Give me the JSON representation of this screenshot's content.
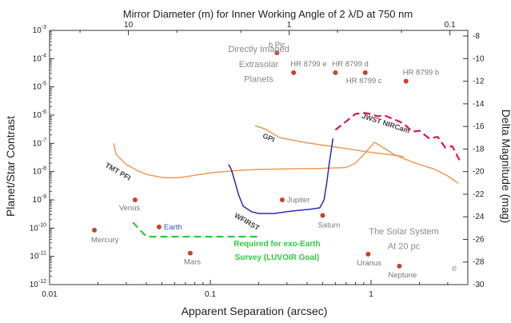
{
  "chart_data": {
    "type": "scatter",
    "title": "Mirror Diameter (m) for Inner Working Angle of 2 λ/D at 750 nm",
    "xlabel": "Apparent Separation (arcsec)",
    "ylabel": "Planet/Star Contrast",
    "y2label": "Delta Magnitude (mag)",
    "xscale": "log",
    "yscale": "log",
    "xlim": [
      0.01,
      4
    ],
    "ylim": [
      1e-12,
      0.001
    ],
    "x_ticks": [
      {
        "value": 0.01,
        "label": "0.01"
      },
      {
        "value": 0.1,
        "label": "0.1"
      },
      {
        "value": 1,
        "label": "1"
      }
    ],
    "y_ticks": [
      {
        "exp": -3,
        "base": "10",
        "power": "-3"
      },
      {
        "exp": -4,
        "base": "10",
        "power": "-4"
      },
      {
        "exp": -5,
        "base": "10",
        "power": "-5"
      },
      {
        "exp": -6,
        "base": "10",
        "power": "-6"
      },
      {
        "exp": -7,
        "base": "10",
        "power": "-7"
      },
      {
        "exp": -8,
        "base": "10",
        "power": "-8"
      },
      {
        "exp": -9,
        "base": "10",
        "power": "-9"
      },
      {
        "exp": -10,
        "base": "10",
        "power": "-10"
      },
      {
        "exp": -11,
        "base": "10",
        "power": "-11"
      },
      {
        "exp": -12,
        "base": "10",
        "power": "-12"
      }
    ],
    "top_ticks": [
      {
        "value": 10,
        "label": "10"
      },
      {
        "value": 1,
        "label": "1"
      },
      {
        "value": 0.1,
        "label": "0.1"
      }
    ],
    "right_ticks": [
      {
        "value": -8,
        "label": "-8"
      },
      {
        "value": -10,
        "label": "-10"
      },
      {
        "value": -12,
        "label": "-12"
      },
      {
        "value": -14,
        "label": "-14"
      },
      {
        "value": -16,
        "label": "-16"
      },
      {
        "value": -18,
        "label": "-18"
      },
      {
        "value": -20,
        "label": "-20"
      },
      {
        "value": -22,
        "label": "-22"
      },
      {
        "value": -24,
        "label": "-24"
      },
      {
        "value": -26,
        "label": "-26"
      },
      {
        "value": -28,
        "label": "-28"
      },
      {
        "value": -30,
        "label": "-30"
      }
    ],
    "planets": [
      {
        "name": "b Pic",
        "x": 0.26,
        "y": 0.00016,
        "label_color": "#777777"
      },
      {
        "name": "HR 8799 e",
        "x": 0.33,
        "y": 3.2e-05,
        "label_color": "#777777"
      },
      {
        "name": "HR 8799 d",
        "x": 0.6,
        "y": 3.2e-05,
        "label_color": "#777777"
      },
      {
        "name": "HR 8799 c",
        "x": 0.92,
        "y": 3.2e-05,
        "label_color": "#777777"
      },
      {
        "name": "HR 8799 b",
        "x": 1.65,
        "y": 1.6e-05,
        "label_color": "#777777"
      },
      {
        "name": "Venus",
        "x": 0.034,
        "y": 1e-09,
        "label_color": "#777777"
      },
      {
        "name": "Earth",
        "x": 0.048,
        "y": 1.1e-10,
        "label_color": "#2a55c8"
      },
      {
        "name": "Mercury",
        "x": 0.019,
        "y": 8.5e-11,
        "label_color": "#777777"
      },
      {
        "name": "Mars",
        "x": 0.075,
        "y": 1.3e-11,
        "label_color": "#777777"
      },
      {
        "name": "Jupiter",
        "x": 0.28,
        "y": 1e-09,
        "label_color": "#777777"
      },
      {
        "name": "Saturn",
        "x": 0.5,
        "y": 2.8e-10,
        "label_color": "#777777"
      },
      {
        "name": "Uranus",
        "x": 0.96,
        "y": 1.2e-11,
        "label_color": "#777777"
      },
      {
        "name": "Neptune",
        "x": 1.5,
        "y": 4.5e-12,
        "label_color": "#777777"
      }
    ],
    "series": [
      {
        "name": "TMT PFI",
        "color": "#ef9a5a",
        "style": "solid",
        "points": [
          [
            0.025,
            1e-07
          ],
          [
            0.026,
            4e-08
          ],
          [
            0.03,
            1.8e-08
          ],
          [
            0.035,
            1.1e-08
          ],
          [
            0.04,
            8e-09
          ],
          [
            0.05,
            6.2e-09
          ],
          [
            0.06,
            6e-09
          ],
          [
            0.07,
            6.5e-09
          ],
          [
            0.08,
            7.5e-09
          ],
          [
            0.1,
            9e-09
          ],
          [
            0.12,
            1e-08
          ],
          [
            0.15,
            1.1e-08
          ],
          [
            0.2,
            1.2e-08
          ],
          [
            0.3,
            1.25e-08
          ],
          [
            0.5,
            1.3e-08
          ],
          [
            0.7,
            1.4e-08
          ],
          [
            0.8,
            2e-08
          ],
          [
            0.9,
            4e-08
          ],
          [
            1.0,
            8e-08
          ],
          [
            1.05,
            1.1e-07
          ],
          [
            1.15,
            8e-08
          ],
          [
            1.4,
            4e-08
          ],
          [
            1.8,
            2.2e-08
          ],
          [
            2.5,
            1.2e-08
          ],
          [
            3.0,
            7e-09
          ],
          [
            3.5,
            3.8e-09
          ]
        ]
      },
      {
        "name": "GPI",
        "color": "#ef9a5a",
        "style": "solid",
        "points": [
          [
            0.19,
            4.3e-07
          ],
          [
            0.22,
            3.2e-07
          ],
          [
            0.27,
            1.6e-07
          ],
          [
            0.4,
            1.05e-07
          ],
          [
            0.7,
            6.5e-08
          ],
          [
            1.0,
            4.8e-08
          ],
          [
            1.3,
            4e-08
          ],
          [
            1.6,
            3.4e-08
          ]
        ]
      },
      {
        "name": "WFIRST",
        "color": "#2b2bb8",
        "style": "solid",
        "points": [
          [
            0.13,
            1.8e-08
          ],
          [
            0.135,
            1.2e-08
          ],
          [
            0.14,
            6e-09
          ],
          [
            0.15,
            1.5e-09
          ],
          [
            0.16,
            6e-10
          ],
          [
            0.18,
            3.8e-10
          ],
          [
            0.2,
            3.3e-10
          ],
          [
            0.25,
            3.3e-10
          ],
          [
            0.3,
            3.8e-10
          ],
          [
            0.35,
            4.2e-10
          ],
          [
            0.42,
            4.7e-10
          ],
          [
            0.48,
            5.2e-10
          ],
          [
            0.51,
            1e-09
          ],
          [
            0.53,
            4e-09
          ],
          [
            0.55,
            2e-08
          ],
          [
            0.58,
            1.5e-07
          ]
        ]
      },
      {
        "name": "JWST NIRCam",
        "color": "#e0144c",
        "style": "dashed",
        "points": [
          [
            0.6,
            3e-07
          ],
          [
            0.7,
            6e-07
          ],
          [
            0.8,
            1.1e-06
          ],
          [
            0.9,
            1.2e-06
          ],
          [
            1.0,
            1.1e-06
          ],
          [
            1.1,
            9e-07
          ],
          [
            1.2,
            1e-06
          ],
          [
            1.4,
            7e-07
          ],
          [
            1.6,
            5e-07
          ],
          [
            1.8,
            2.6e-07
          ],
          [
            2.0,
            2.8e-07
          ],
          [
            2.3,
            1.5e-07
          ],
          [
            2.6,
            1.7e-07
          ],
          [
            2.9,
            7e-08
          ],
          [
            3.2,
            8e-08
          ],
          [
            3.6,
            2.2e-08
          ]
        ]
      },
      {
        "name": "Required for exo-Earth",
        "color": "#2ecc40",
        "style": "dashed",
        "points": [
          [
            0.033,
            1.6e-10
          ],
          [
            0.04,
            5e-11
          ],
          [
            0.06,
            5e-11
          ],
          [
            0.1,
            5e-11
          ],
          [
            0.2,
            5e-11
          ]
        ]
      }
    ],
    "annotations": [
      {
        "text": "Directly Imaged",
        "x": 0.2,
        "y": 0.00017,
        "color": "#8a8a8a"
      },
      {
        "text": "Extrasolar",
        "x": 0.2,
        "y": 5e-05,
        "color": "#8a8a8a"
      },
      {
        "text": "Planets",
        "x": 0.2,
        "y": 1.5e-05,
        "color": "#8a8a8a"
      },
      {
        "text": "The Solar System",
        "x": 1.6,
        "y": 6e-11,
        "color": "#8a8a8a"
      },
      {
        "text": "At 20 pc",
        "x": 1.6,
        "y": 1.8e-11,
        "color": "#8a8a8a"
      },
      {
        "text": "Required for exo-Earth",
        "x": 0.26,
        "y": 2.3e-11,
        "color": "#2ecc40"
      },
      {
        "text": "Survey (LUVOIR Goal)",
        "x": 0.26,
        "y": 7.5e-12,
        "color": "#2ecc40"
      },
      {
        "text": "e",
        "x": 3.3,
        "y": 3e-12,
        "color": "#999999"
      }
    ],
    "curve_labels": [
      {
        "text": "TMT PFI",
        "x": 0.022,
        "y": 1.5e-08,
        "color": "#444444",
        "rotate": 30
      },
      {
        "text": "GPI",
        "x": 0.21,
        "y": 1.6e-07,
        "color": "#444444",
        "rotate": 22
      },
      {
        "text": "WFIRST",
        "x": 0.14,
        "y": 2.5e-10,
        "color": "#444444",
        "rotate": 30
      },
      {
        "text": "JWST NIRCam",
        "x": 0.87,
        "y": 8e-07,
        "color": "#444444",
        "rotate": 18
      }
    ]
  }
}
